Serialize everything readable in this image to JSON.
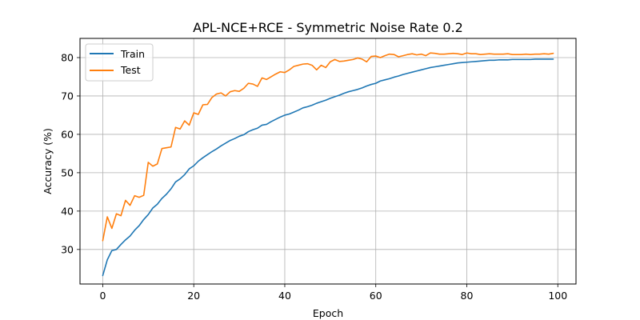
{
  "chart_data": {
    "type": "line",
    "title": "APL-NCE+RCE - Symmetric Noise Rate 0.2",
    "xlabel": "Epoch",
    "ylabel": "Accuracy (%)",
    "xlim": [
      -5,
      104
    ],
    "ylim": [
      21,
      85
    ],
    "xticks": [
      0,
      20,
      40,
      60,
      80,
      100
    ],
    "yticks": [
      30,
      40,
      50,
      60,
      70,
      80
    ],
    "grid": true,
    "legend_position": "top-left",
    "x": [
      0,
      1,
      2,
      3,
      4,
      5,
      6,
      7,
      8,
      9,
      10,
      11,
      12,
      13,
      14,
      15,
      16,
      17,
      18,
      19,
      20,
      21,
      22,
      23,
      24,
      25,
      26,
      27,
      28,
      29,
      30,
      31,
      32,
      33,
      34,
      35,
      36,
      37,
      38,
      39,
      40,
      41,
      42,
      43,
      44,
      45,
      46,
      47,
      48,
      49,
      50,
      51,
      52,
      53,
      54,
      55,
      56,
      57,
      58,
      59,
      60,
      61,
      62,
      63,
      64,
      65,
      66,
      67,
      68,
      69,
      70,
      71,
      72,
      73,
      74,
      75,
      76,
      77,
      78,
      79,
      80,
      81,
      82,
      83,
      84,
      85,
      86,
      87,
      88,
      89,
      90,
      91,
      92,
      93,
      94,
      95,
      96,
      97,
      98,
      99
    ],
    "series": [
      {
        "name": "Train",
        "color": "#1f77b4",
        "values": [
          23.2,
          27.3,
          29.7,
          30.0,
          31.3,
          32.5,
          33.5,
          35.0,
          36.2,
          37.8,
          39.1,
          40.8,
          41.8,
          43.3,
          44.4,
          45.8,
          47.6,
          48.4,
          49.5,
          51.0,
          51.8,
          53.0,
          53.9,
          54.7,
          55.5,
          56.2,
          57.0,
          57.7,
          58.4,
          58.9,
          59.5,
          59.9,
          60.7,
          61.2,
          61.6,
          62.4,
          62.6,
          63.3,
          63.9,
          64.5,
          65.0,
          65.3,
          65.8,
          66.3,
          66.9,
          67.2,
          67.6,
          68.1,
          68.5,
          68.9,
          69.4,
          69.8,
          70.2,
          70.7,
          71.1,
          71.4,
          71.7,
          72.1,
          72.6,
          73.0,
          73.3,
          73.9,
          74.2,
          74.5,
          74.9,
          75.2,
          75.6,
          75.9,
          76.2,
          76.5,
          76.8,
          77.1,
          77.4,
          77.6,
          77.8,
          78.0,
          78.2,
          78.4,
          78.6,
          78.7,
          78.8,
          78.9,
          79.0,
          79.1,
          79.2,
          79.3,
          79.3,
          79.4,
          79.4,
          79.4,
          79.5,
          79.5,
          79.5,
          79.5,
          79.5,
          79.6,
          79.6,
          79.6,
          79.6,
          79.6
        ]
      },
      {
        "name": "Test",
        "color": "#ff7f0e",
        "values": [
          32.3,
          38.5,
          35.5,
          39.3,
          38.8,
          42.8,
          41.5,
          44.0,
          43.6,
          44.1,
          52.7,
          51.7,
          52.3,
          56.3,
          56.5,
          56.7,
          61.8,
          61.4,
          63.5,
          62.4,
          65.6,
          65.2,
          67.7,
          67.8,
          69.6,
          70.5,
          70.8,
          70.0,
          71.1,
          71.4,
          71.2,
          72.0,
          73.3,
          73.1,
          72.5,
          74.7,
          74.3,
          75.0,
          75.7,
          76.3,
          76.1,
          76.8,
          77.7,
          78.0,
          78.3,
          78.4,
          78.0,
          76.8,
          78.0,
          77.4,
          78.9,
          79.5,
          79.0,
          79.1,
          79.3,
          79.5,
          79.9,
          79.6,
          78.9,
          80.3,
          80.4,
          80.0,
          80.5,
          80.9,
          80.8,
          80.2,
          80.5,
          80.8,
          81.0,
          80.7,
          80.9,
          80.5,
          81.2,
          81.1,
          80.9,
          80.9,
          81.0,
          81.1,
          81.0,
          80.8,
          81.2,
          81.0,
          81.0,
          80.8,
          80.9,
          81.0,
          80.9,
          80.9,
          80.9,
          81.0,
          80.8,
          80.8,
          80.8,
          80.9,
          80.8,
          80.9,
          80.9,
          81.0,
          80.9,
          81.1
        ]
      }
    ]
  }
}
